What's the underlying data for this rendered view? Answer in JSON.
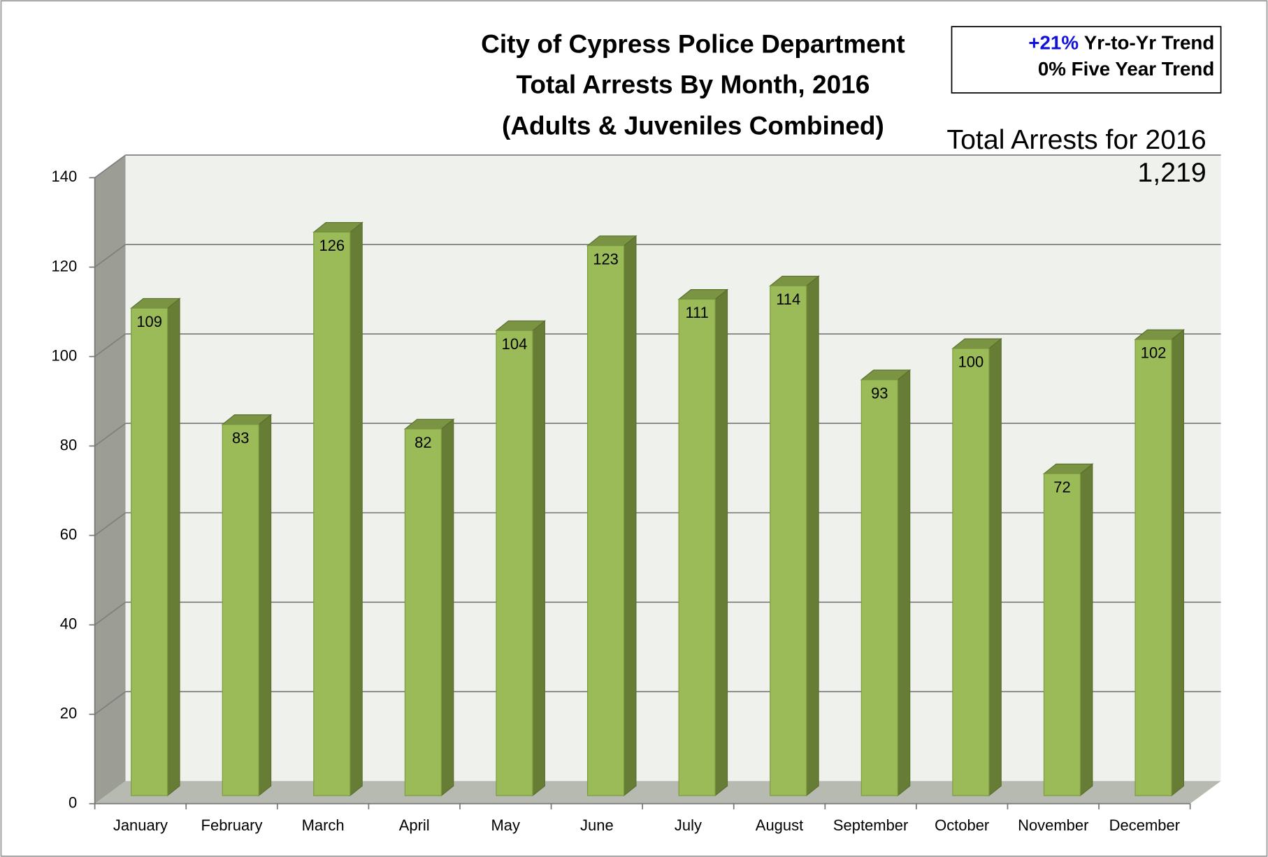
{
  "chart_data": {
    "type": "bar3d",
    "title": [
      "City of Cypress Police Department",
      "Total Arrests By Month, 2016",
      "(Adults & Juveniles Combined)"
    ],
    "trend_yoy_value": "+21%",
    "trend_yoy_label": "Yr-to-Yr Trend",
    "trend_five_year": "0% Five Year Trend",
    "total_label": "Total Arrests for 2016",
    "total_value": "1,219",
    "categories": [
      "January",
      "February",
      "March",
      "April",
      "May",
      "June",
      "July",
      "August",
      "September",
      "October",
      "November",
      "December"
    ],
    "values": [
      109,
      83,
      126,
      82,
      104,
      123,
      111,
      114,
      93,
      100,
      72,
      102
    ],
    "color": "#9bbb59",
    "ylim": [
      0,
      140
    ],
    "yticks": [
      0,
      20,
      40,
      60,
      80,
      100,
      120,
      140
    ],
    "grid": true
  }
}
